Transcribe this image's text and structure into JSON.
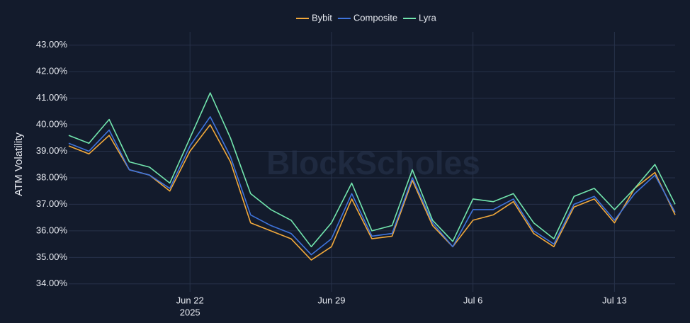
{
  "chart_data": {
    "type": "line",
    "watermark": "BlockScholes",
    "y_label": "ATM Volatility",
    "x": [
      "2025-06-16",
      "2025-06-17",
      "2025-06-18",
      "2025-06-19",
      "2025-06-20",
      "2025-06-21",
      "2025-06-22",
      "2025-06-23",
      "2025-06-24",
      "2025-06-25",
      "2025-06-26",
      "2025-06-27",
      "2025-06-28",
      "2025-06-29",
      "2025-06-30",
      "2025-07-01",
      "2025-07-02",
      "2025-07-03",
      "2025-07-04",
      "2025-07-05",
      "2025-07-06",
      "2025-07-07",
      "2025-07-08",
      "2025-07-09",
      "2025-07-10",
      "2025-07-11",
      "2025-07-12",
      "2025-07-13",
      "2025-07-14",
      "2025-07-15",
      "2025-07-16"
    ],
    "series": [
      {
        "name": "Bybit",
        "color": "#f2a93b",
        "values": [
          39.2,
          38.9,
          39.6,
          38.3,
          38.1,
          37.5,
          39.0,
          40.0,
          38.6,
          36.3,
          36.0,
          35.7,
          34.9,
          35.4,
          37.2,
          35.7,
          35.8,
          37.9,
          36.2,
          35.4,
          36.4,
          36.6,
          37.1,
          35.9,
          35.4,
          36.9,
          37.2,
          36.3,
          37.6,
          38.2,
          36.6
        ]
      },
      {
        "name": "Composite",
        "color": "#3f74dc",
        "values": [
          39.3,
          39.0,
          39.8,
          38.3,
          38.1,
          37.6,
          39.2,
          40.3,
          38.8,
          36.6,
          36.2,
          35.9,
          35.1,
          35.7,
          37.4,
          35.8,
          35.9,
          38.0,
          36.3,
          35.4,
          36.8,
          36.8,
          37.2,
          36.0,
          35.5,
          37.0,
          37.3,
          36.4,
          37.4,
          38.1,
          36.7
        ]
      },
      {
        "name": "Lyra",
        "color": "#72e6ae",
        "values": [
          39.6,
          39.3,
          40.2,
          38.6,
          38.4,
          37.8,
          39.5,
          41.2,
          39.5,
          37.4,
          36.8,
          36.4,
          35.4,
          36.3,
          37.8,
          36.0,
          36.2,
          38.3,
          36.4,
          35.6,
          37.2,
          37.1,
          37.4,
          36.3,
          35.7,
          37.3,
          37.6,
          36.8,
          37.6,
          38.5,
          37.0
        ]
      }
    ],
    "xlim": [
      "2025-06-16",
      "2025-07-16"
    ],
    "xticks": [
      {
        "value": "2025-06-22",
        "label": [
          "Jun 22",
          "2025"
        ]
      },
      {
        "value": "2025-06-29",
        "label": [
          "Jun 29"
        ]
      },
      {
        "value": "2025-07-06",
        "label": [
          "Jul 6"
        ]
      },
      {
        "value": "2025-07-13",
        "label": [
          "Jul 13"
        ]
      }
    ],
    "ylim": [
      33.7,
      43.5
    ],
    "yticks": [
      {
        "value": 34,
        "label": "34.00%"
      },
      {
        "value": 35,
        "label": "35.00%"
      },
      {
        "value": 36,
        "label": "36.00%"
      },
      {
        "value": 37,
        "label": "37.00%"
      },
      {
        "value": 38,
        "label": "38.00%"
      },
      {
        "value": 39,
        "label": "39.00%"
      },
      {
        "value": 40,
        "label": "40.00%"
      },
      {
        "value": 41,
        "label": "41.00%"
      },
      {
        "value": 42,
        "label": "42.00%"
      },
      {
        "value": 43,
        "label": "43.00%"
      }
    ],
    "grid": true
  }
}
